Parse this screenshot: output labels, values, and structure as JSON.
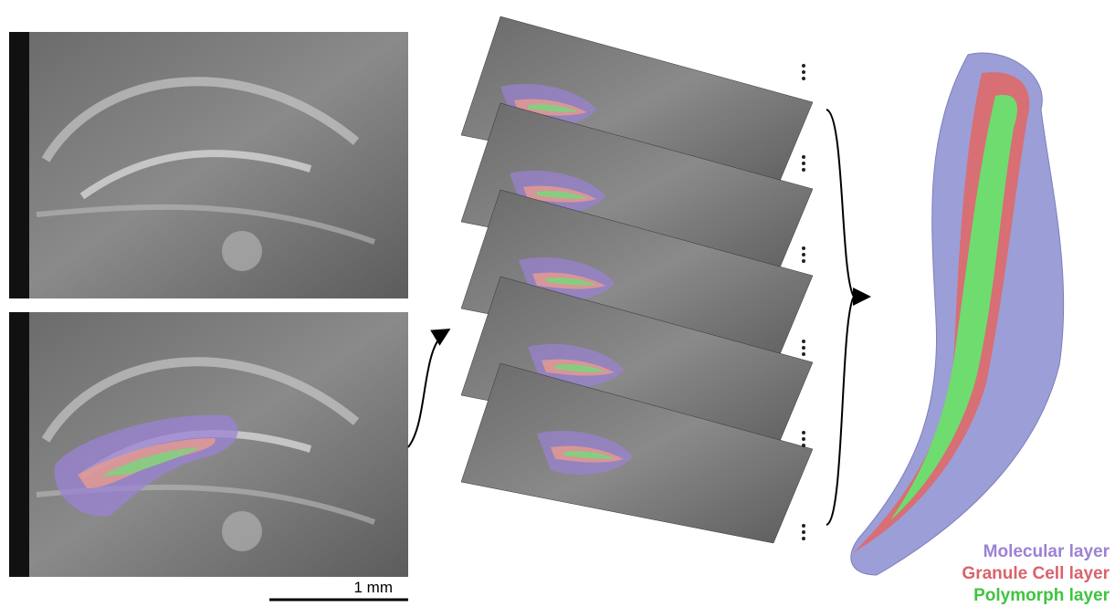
{
  "scale_bar": {
    "label": "1 mm"
  },
  "legend": {
    "items": [
      {
        "label": "Molecular layer",
        "color": "#9b82d4"
      },
      {
        "label": "Granule Cell layer",
        "color": "#d9636b"
      },
      {
        "label": "Polymorph layer",
        "color": "#3fc43f"
      }
    ]
  }
}
